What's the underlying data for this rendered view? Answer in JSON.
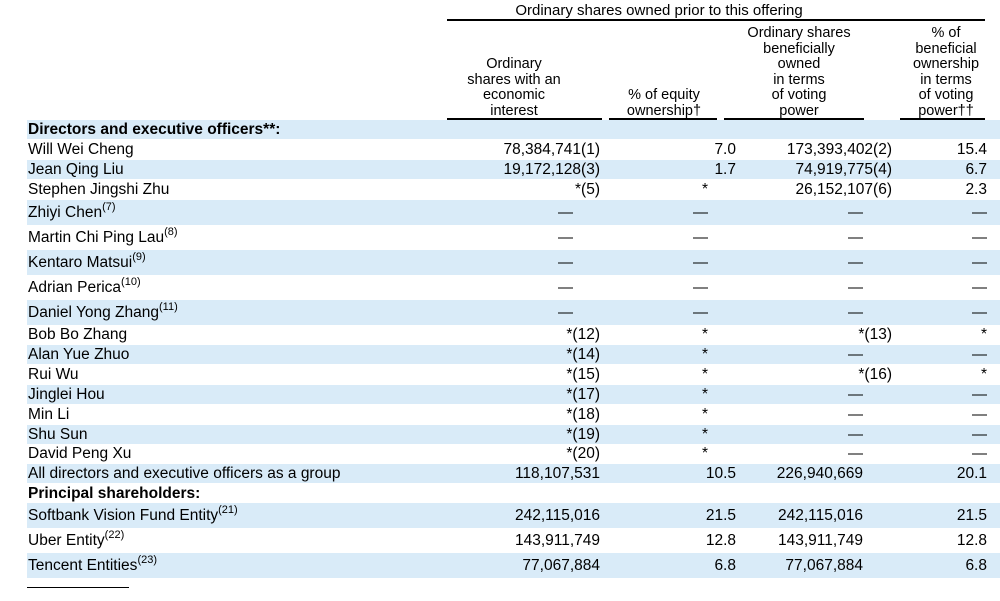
{
  "header": {
    "group_title": "Ordinary shares owned prior to this offering",
    "col1": [
      "Ordinary",
      "shares with an",
      "economic",
      "interest"
    ],
    "col2": [
      "% of equity",
      "ownership†"
    ],
    "col3": [
      "Ordinary shares",
      "beneficially",
      "owned",
      "in terms",
      "of voting",
      "power"
    ],
    "col4": [
      "% of",
      "beneficial",
      "ownership",
      "in terms",
      "of voting",
      "power††"
    ]
  },
  "sections": {
    "directors": "Directors and executive officers**:",
    "principal": "Principal shareholders:"
  },
  "colors": {
    "row_shade": "#d9ebf8",
    "text": "#000000"
  },
  "rows": [
    {
      "name": "Will Wei Cheng",
      "sup": "",
      "c1": "78,384,741(1)",
      "c2": "7.0",
      "c3": "173,393,402(2)",
      "c4": "15.4"
    },
    {
      "name": "Jean Qing Liu",
      "sup": "",
      "c1": "19,172,128(3)",
      "c2": "1.7",
      "c3": "74,919,775(4)",
      "c4": "6.7"
    },
    {
      "name": "Stephen Jingshi Zhu",
      "sup": "",
      "c1": "*(5)",
      "c2": "*",
      "c3": "26,152,107(6)",
      "c4": "2.3"
    },
    {
      "name": "Zhiyi Chen",
      "sup": "(7)",
      "c1": "—",
      "c2": "—",
      "c3": "—",
      "c4": "—"
    },
    {
      "name": "Martin Chi Ping Lau",
      "sup": "(8)",
      "c1": "—",
      "c2": "—",
      "c3": "—",
      "c4": "—"
    },
    {
      "name": "Kentaro Matsui",
      "sup": "(9)",
      "c1": "—",
      "c2": "—",
      "c3": "—",
      "c4": "—"
    },
    {
      "name": "Adrian Perica",
      "sup": "(10)",
      "c1": "—",
      "c2": "—",
      "c3": "—",
      "c4": "—"
    },
    {
      "name": "Daniel Yong Zhang",
      "sup": "(11)",
      "c1": "—",
      "c2": "—",
      "c3": "—",
      "c4": "—"
    },
    {
      "name": "Bob Bo Zhang",
      "sup": "",
      "c1": "*(12)",
      "c2": "*",
      "c3": "*(13)",
      "c4": "*"
    },
    {
      "name": "Alan Yue Zhuo",
      "sup": "",
      "c1": "*(14)",
      "c2": "*",
      "c3": "—",
      "c4": "—"
    },
    {
      "name": "Rui Wu",
      "sup": "",
      "c1": "*(15)",
      "c2": "*",
      "c3": "*(16)",
      "c4": "*"
    },
    {
      "name": "Jinglei Hou",
      "sup": "",
      "c1": "*(17)",
      "c2": "*",
      "c3": "—",
      "c4": "—"
    },
    {
      "name": "Min Li",
      "sup": "",
      "c1": "*(18)",
      "c2": "*",
      "c3": "—",
      "c4": "—"
    },
    {
      "name": "Shu Sun",
      "sup": "",
      "c1": "*(19)",
      "c2": "*",
      "c3": "—",
      "c4": "—"
    },
    {
      "name": "David Peng Xu",
      "sup": "",
      "c1": "*(20)",
      "c2": "*",
      "c3": "—",
      "c4": "—"
    },
    {
      "name": "All directors and executive officers as a group",
      "sup": "",
      "c1": "118,107,531",
      "c2": "10.5",
      "c3": "226,940,669",
      "c4": "20.1"
    }
  ],
  "principal_rows": [
    {
      "name": "Softbank Vision Fund Entity",
      "sup": "(21)",
      "c1": "242,115,016",
      "c2": "21.5",
      "c3": "242,115,016",
      "c4": "21.5"
    },
    {
      "name": "Uber Entity",
      "sup": "(22)",
      "c1": "143,911,749",
      "c2": "12.8",
      "c3": "143,911,749",
      "c4": "12.8"
    },
    {
      "name": "Tencent Entities",
      "sup": "(23)",
      "c1": "77,067,884",
      "c2": "6.8",
      "c3": "77,067,884",
      "c4": "6.8"
    }
  ]
}
